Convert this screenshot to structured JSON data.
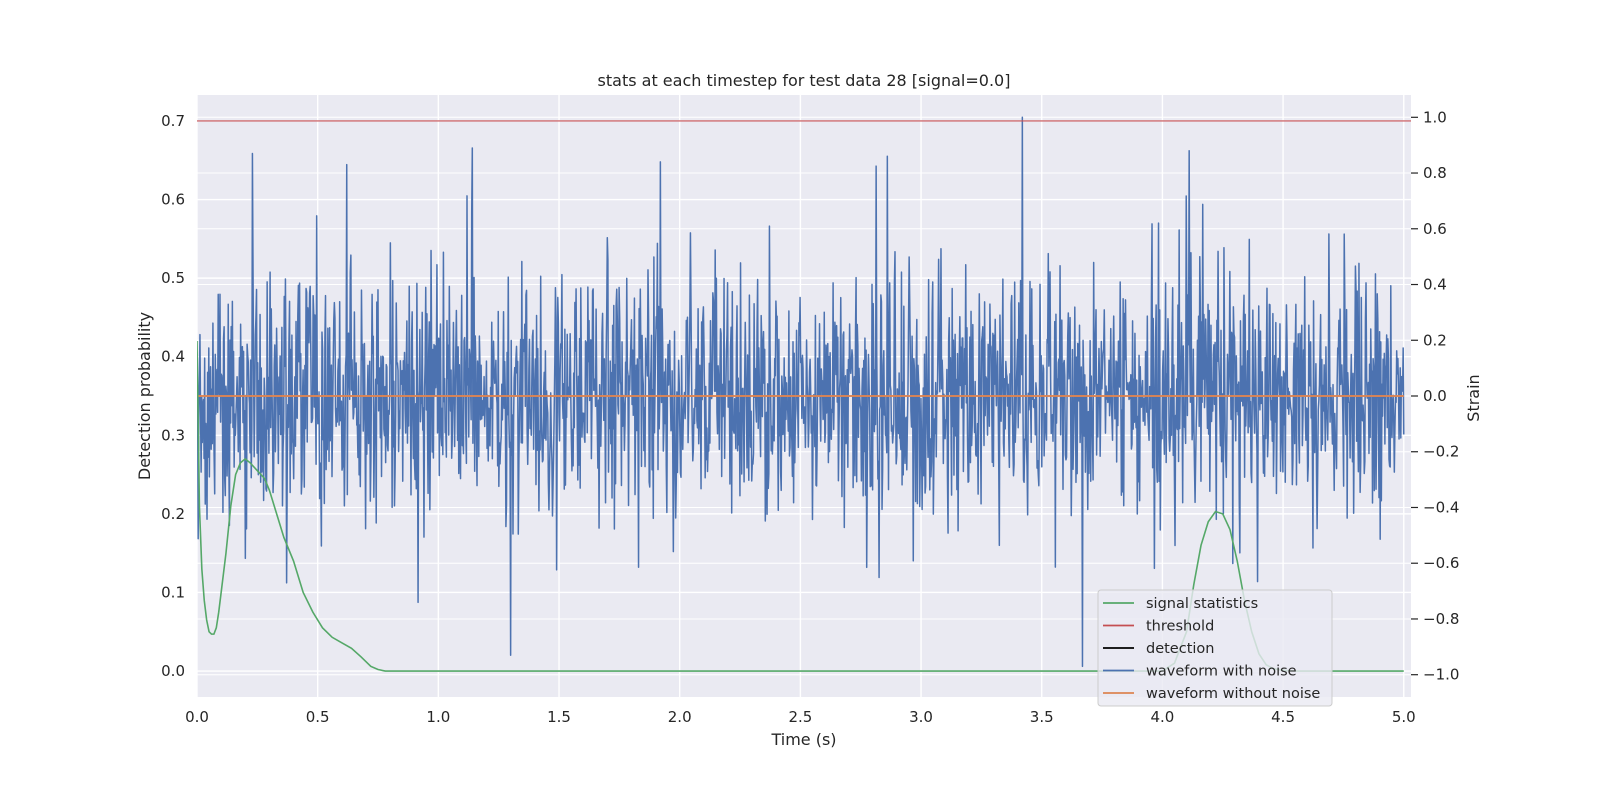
{
  "chart_data": {
    "type": "line",
    "title": "stats at each timestep for test data 28 [signal=0.0]",
    "xlabel": "Time (s)",
    "ylabel": "Detection probability",
    "ylabel_right": "Strain",
    "xlim": [
      0.0,
      5.03
    ],
    "ylim": [
      -0.033,
      0.733
    ],
    "ylim_right": [
      -1.08,
      1.08
    ],
    "x_ticks": [
      0.0,
      0.5,
      1.0,
      1.5,
      2.0,
      2.5,
      3.0,
      3.5,
      4.0,
      4.5,
      5.0
    ],
    "x_tick_labels": [
      "0.0",
      "0.5",
      "1.0",
      "1.5",
      "2.0",
      "2.5",
      "3.0",
      "3.5",
      "4.0",
      "4.5",
      "5.0"
    ],
    "y_ticks": [
      0.0,
      0.1,
      0.2,
      0.3,
      0.4,
      0.5,
      0.6,
      0.7
    ],
    "y_tick_labels": [
      "0.0",
      "0.1",
      "0.2",
      "0.3",
      "0.4",
      "0.5",
      "0.6",
      "0.7"
    ],
    "y_ticks_right": [
      -1.0,
      -0.8,
      -0.6,
      -0.4,
      -0.2,
      0.0,
      0.2,
      0.4,
      0.6,
      0.8,
      1.0
    ],
    "y_tick_labels_right": [
      "−1.0",
      "−0.8",
      "−0.6",
      "−0.4",
      "−0.2",
      "0.0",
      "0.2",
      "0.4",
      "0.6",
      "0.8",
      "1.0"
    ],
    "grid": true,
    "legend_position": "lower-right",
    "series": [
      {
        "name": "signal statistics",
        "axis": "left",
        "color": "#55a868",
        "x": [
          0.0,
          0.01,
          0.02,
          0.03,
          0.04,
          0.05,
          0.06,
          0.07,
          0.08,
          0.09,
          0.1,
          0.12,
          0.14,
          0.16,
          0.18,
          0.2,
          0.22,
          0.25,
          0.28,
          0.3,
          0.33,
          0.36,
          0.4,
          0.44,
          0.48,
          0.52,
          0.56,
          0.6,
          0.64,
          0.68,
          0.72,
          0.75,
          0.78,
          0.82,
          0.9,
          1.0,
          1.5,
          2.0,
          2.5,
          3.0,
          3.5,
          3.9,
          4.0,
          4.05,
          4.1,
          4.13,
          4.16,
          4.19,
          4.22,
          4.25,
          4.28,
          4.31,
          4.34,
          4.37,
          4.4,
          4.43,
          4.46,
          4.5,
          4.55,
          4.6,
          5.0
        ],
        "values": [
          0.42,
          0.21,
          0.13,
          0.09,
          0.065,
          0.05,
          0.047,
          0.047,
          0.055,
          0.075,
          0.1,
          0.15,
          0.21,
          0.25,
          0.265,
          0.27,
          0.265,
          0.255,
          0.245,
          0.23,
          0.2,
          0.17,
          0.14,
          0.1,
          0.075,
          0.055,
          0.043,
          0.036,
          0.029,
          0.018,
          0.006,
          0.002,
          0.0,
          0.0,
          0.0,
          0.0,
          0.0,
          0.0,
          0.0,
          0.0,
          0.0,
          0.0,
          0.0,
          0.01,
          0.05,
          0.11,
          0.16,
          0.19,
          0.203,
          0.2,
          0.18,
          0.14,
          0.09,
          0.05,
          0.022,
          0.008,
          0.003,
          0.001,
          0.0,
          0.0,
          0.0
        ]
      },
      {
        "name": "threshold",
        "axis": "left",
        "color": "#c44e52",
        "x": [
          0.0,
          5.03
        ],
        "values": [
          0.7,
          0.7
        ]
      },
      {
        "name": "detection",
        "axis": "left",
        "color": "#000000",
        "x": [],
        "values": []
      },
      {
        "name": "waveform with noise",
        "axis": "right",
        "color": "#4c72b0",
        "x_range": [
          0.0,
          5.0
        ],
        "samples": 2048,
        "amplitude_std": 0.22,
        "peaks": [
          {
            "x": 0.23,
            "y": 0.87
          },
          {
            "x": 0.62,
            "y": 0.83
          },
          {
            "x": 1.14,
            "y": 0.89
          },
          {
            "x": 1.3,
            "y": -0.93
          },
          {
            "x": 1.92,
            "y": 0.84
          },
          {
            "x": 2.86,
            "y": 0.86
          },
          {
            "x": 3.42,
            "y": 1.0
          },
          {
            "x": 3.67,
            "y": -0.97
          },
          {
            "x": 4.11,
            "y": 0.88
          }
        ]
      },
      {
        "name": "waveform without noise",
        "axis": "right",
        "color": "#dd8452",
        "x": [
          0.0,
          5.0
        ],
        "values": [
          0.0,
          0.0
        ]
      }
    ]
  }
}
